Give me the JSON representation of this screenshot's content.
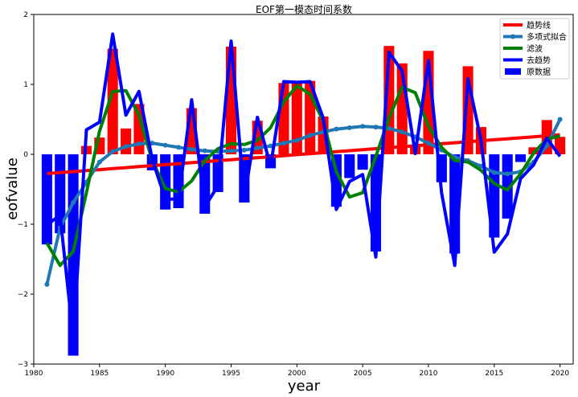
{
  "chart_data": {
    "type": "bar",
    "title": "EOF第一模态时间系数",
    "xlabel": "year",
    "ylabel": "eofvalue",
    "xlim": [
      1980,
      2021
    ],
    "ylim": [
      -3,
      2
    ],
    "xticks": [
      1980,
      1985,
      1990,
      1995,
      2000,
      2005,
      2010,
      2015,
      2020
    ],
    "yticks": [
      -3,
      -2,
      -1,
      0,
      1,
      2
    ],
    "grid": false,
    "legend_placement": "top-right",
    "years": [
      1981,
      1982,
      1983,
      1984,
      1985,
      1986,
      1987,
      1988,
      1989,
      1990,
      1991,
      1992,
      1993,
      1994,
      1995,
      1996,
      1997,
      1998,
      1999,
      2000,
      2001,
      2002,
      2003,
      2004,
      2005,
      2006,
      2007,
      2008,
      2009,
      2010,
      2011,
      2012,
      2013,
      2014,
      2015,
      2016,
      2017,
      2018,
      2019,
      2020
    ],
    "bar_colors": {
      "positive": "#ff0000",
      "negative": "#0000ff"
    },
    "series": [
      {
        "name": "原数据",
        "kind": "bar",
        "color": "#0000ff",
        "values": [
          -1.29,
          -1.13,
          -2.88,
          0.12,
          0.24,
          1.51,
          0.37,
          0.72,
          -0.23,
          -0.79,
          -0.77,
          0.66,
          -0.85,
          -0.54,
          1.54,
          -0.69,
          0.48,
          -0.2,
          1.02,
          1.02,
          1.05,
          0.54,
          -0.75,
          -0.34,
          -0.22,
          -1.39,
          1.55,
          1.3,
          0.13,
          1.48,
          -0.4,
          -1.42,
          1.26,
          0.39,
          -1.19,
          -0.92,
          -0.11,
          0.1,
          0.49,
          0.25
        ]
      },
      {
        "name": "趋势线",
        "kind": "line",
        "color": "#ff0000",
        "values": [
          -0.276,
          -0.262,
          -0.248,
          -0.233,
          -0.219,
          -0.205,
          -0.191,
          -0.176,
          -0.162,
          -0.148,
          -0.134,
          -0.119,
          -0.105,
          -0.091,
          -0.077,
          -0.062,
          -0.048,
          -0.034,
          -0.02,
          -0.005,
          0.009,
          0.023,
          0.037,
          0.052,
          0.066,
          0.08,
          0.094,
          0.108,
          0.122,
          0.137,
          0.151,
          0.165,
          0.179,
          0.194,
          0.208,
          0.222,
          0.236,
          0.251,
          0.265,
          0.279
        ]
      },
      {
        "name": "多项式拟合",
        "kind": "line-marker",
        "color": "#1f77b4",
        "values": [
          -1.86,
          -1.05,
          -0.69,
          -0.4,
          -0.11,
          0.04,
          0.11,
          0.15,
          0.16,
          0.13,
          0.1,
          0.07,
          0.05,
          0.04,
          0.05,
          0.06,
          0.09,
          0.12,
          0.16,
          0.2,
          0.27,
          0.32,
          0.36,
          0.38,
          0.4,
          0.39,
          0.37,
          0.32,
          0.25,
          0.16,
          0.06,
          -0.04,
          -0.09,
          -0.17,
          -0.26,
          -0.28,
          -0.25,
          -0.11,
          0.12,
          0.5
        ]
      },
      {
        "name": "滤波",
        "kind": "line",
        "color": "#008000",
        "values": [
          -1.27,
          -1.59,
          -1.39,
          -0.55,
          0.33,
          0.9,
          0.91,
          0.56,
          -0.09,
          -0.49,
          -0.54,
          -0.38,
          -0.09,
          0.08,
          0.15,
          0.14,
          0.2,
          0.38,
          0.75,
          0.98,
          0.86,
          0.48,
          -0.25,
          -0.61,
          -0.55,
          -0.03,
          0.52,
          0.96,
          0.88,
          0.4,
          0.1,
          -0.09,
          -0.11,
          -0.23,
          -0.42,
          -0.51,
          -0.28,
          0.02,
          0.22,
          0.26
        ]
      },
      {
        "name": "去趋势",
        "kind": "line",
        "color": "#0000ff",
        "values": [
          -1.01,
          -0.87,
          -2.63,
          0.35,
          0.46,
          1.72,
          0.56,
          0.9,
          -0.07,
          -0.64,
          -0.64,
          0.78,
          -0.75,
          -0.45,
          1.62,
          -0.63,
          0.53,
          -0.17,
          1.04,
          1.03,
          1.04,
          0.52,
          -0.79,
          -0.39,
          -0.29,
          -1.47,
          1.46,
          1.19,
          0.01,
          1.34,
          -0.55,
          -1.59,
          1.08,
          0.2,
          -1.4,
          -1.14,
          -0.35,
          -0.15,
          0.23,
          -0.03
        ]
      }
    ],
    "legend_order": [
      "趋势线",
      "多项式拟合",
      "滤波",
      "去趋势",
      "原数据"
    ]
  }
}
